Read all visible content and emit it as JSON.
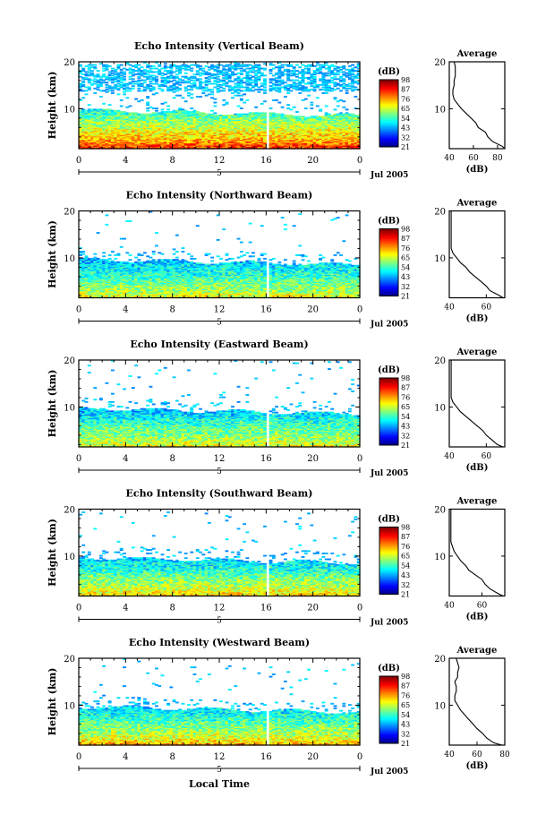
{
  "figure": {
    "xaxis_label": "Local Time",
    "date_label": "Jul 2005",
    "day_label": "5",
    "time_ticks": [
      "0",
      "4",
      "8",
      "12",
      "16",
      "20",
      "0"
    ],
    "colorbar_unit": "(dB)",
    "colorbar_ticks": [
      "21",
      "32",
      "43",
      "54",
      "65",
      "76",
      "87",
      "98"
    ],
    "side_title": "Average",
    "side_xlabel": "(dB)"
  },
  "chart_data": [
    {
      "type": "heatmap",
      "title": "Echo Intensity (Vertical Beam)",
      "ylabel": "Height (km)",
      "x_hours": [
        0,
        24
      ],
      "ylim_km": [
        1.5,
        20
      ],
      "y_ticks": [
        "10",
        "20"
      ],
      "clim_db": [
        21,
        98
      ],
      "data_gap_hours": [
        15.9,
        16.1
      ],
      "colorbar_ticks": [
        "21",
        "32",
        "43",
        "54",
        "65",
        "76",
        "87",
        "98"
      ],
      "profile": {
        "title": "Average",
        "xlim": [
          40,
          86
        ],
        "x_ticks": [
          "40",
          "60",
          "80"
        ],
        "y_ticks": [
          "10",
          "20"
        ],
        "height_km": [
          1.5,
          2,
          3,
          4,
          5,
          6,
          7,
          8,
          9,
          10,
          11,
          12,
          13,
          14,
          15,
          16,
          17,
          18,
          19,
          20
        ],
        "db": [
          86,
          84,
          76,
          72,
          70,
          64,
          62,
          58,
          54,
          50,
          47,
          44,
          43,
          43,
          44,
          44,
          45,
          45,
          45,
          44
        ]
      }
    },
    {
      "type": "heatmap",
      "title": "Echo Intensity (Northward Beam)",
      "ylabel": "Height (km)",
      "x_hours": [
        0,
        24
      ],
      "ylim_km": [
        1.5,
        20
      ],
      "y_ticks": [
        "10",
        "20"
      ],
      "clim_db": [
        21,
        98
      ],
      "data_gap_hours": [
        15.9,
        16.1
      ],
      "colorbar_ticks": [
        "21",
        "32",
        "43",
        "54",
        "65",
        "76",
        "87",
        "98"
      ],
      "profile": {
        "title": "Average",
        "xlim": [
          40,
          70
        ],
        "x_ticks": [
          "40",
          "60"
        ],
        "y_ticks": [
          "10",
          "20"
        ],
        "height_km": [
          1.5,
          2,
          3,
          4,
          5,
          6,
          7,
          8,
          9,
          10,
          11,
          12,
          13,
          14,
          15,
          16,
          17,
          18,
          19,
          20
        ],
        "db": [
          69,
          67,
          62,
          60,
          57,
          54,
          51,
          49,
          46,
          44,
          42,
          41,
          41,
          41,
          41,
          41,
          41,
          41,
          41,
          41
        ]
      }
    },
    {
      "type": "heatmap",
      "title": "Echo Intensity (Eastward Beam)",
      "ylabel": "Height (km)",
      "x_hours": [
        0,
        24
      ],
      "ylim_km": [
        1.5,
        20
      ],
      "y_ticks": [
        "10",
        "20"
      ],
      "clim_db": [
        21,
        98
      ],
      "data_gap_hours": [
        15.9,
        16.1
      ],
      "colorbar_ticks": [
        "21",
        "32",
        "43",
        "54",
        "65",
        "76",
        "87",
        "98"
      ],
      "profile": {
        "title": "Average",
        "xlim": [
          40,
          70
        ],
        "x_ticks": [
          "40",
          "60"
        ],
        "y_ticks": [
          "10",
          "20"
        ],
        "height_km": [
          1.5,
          2,
          3,
          4,
          5,
          6,
          7,
          8,
          9,
          10,
          11,
          12,
          13,
          14,
          15,
          16,
          17,
          18,
          19,
          20
        ],
        "db": [
          69,
          66,
          63,
          60,
          58,
          55,
          52,
          49,
          46,
          44,
          42,
          41,
          41,
          41,
          41,
          41,
          41,
          41,
          41,
          41
        ]
      }
    },
    {
      "type": "heatmap",
      "title": "Echo Intensity (Southward Beam)",
      "ylabel": "Height (km)",
      "x_hours": [
        0,
        24
      ],
      "ylim_km": [
        1.5,
        20
      ],
      "y_ticks": [
        "10",
        "20"
      ],
      "clim_db": [
        21,
        98
      ],
      "data_gap_hours": [
        15.9,
        16.1
      ],
      "colorbar_ticks": [
        "21",
        "32",
        "43",
        "54",
        "65",
        "76",
        "87",
        "98"
      ],
      "profile": {
        "title": "Average",
        "xlim": [
          40,
          74
        ],
        "x_ticks": [
          "40",
          "60"
        ],
        "y_ticks": [
          "10",
          "20"
        ],
        "height_km": [
          1.5,
          2,
          3,
          4,
          5,
          6,
          7,
          8,
          9,
          10,
          11,
          12,
          13,
          14,
          15,
          16,
          17,
          18,
          19,
          20
        ],
        "db": [
          73,
          70,
          65,
          62,
          60,
          56,
          52,
          50,
          47,
          45,
          43,
          42,
          41,
          41,
          41,
          41,
          41,
          41,
          41,
          41
        ]
      }
    },
    {
      "type": "heatmap",
      "title": "Echo Intensity (Westward Beam)",
      "ylabel": "Height (km)",
      "x_hours": [
        0,
        24
      ],
      "ylim_km": [
        1.5,
        20
      ],
      "y_ticks": [
        "10",
        "20"
      ],
      "clim_db": [
        21,
        98
      ],
      "data_gap_hours": [
        15.9,
        16.1
      ],
      "colorbar_ticks": [
        "21",
        "32",
        "43",
        "54",
        "65",
        "76",
        "87",
        "98"
      ],
      "profile": {
        "title": "Average",
        "xlim": [
          40,
          80
        ],
        "x_ticks": [
          "40",
          "60",
          "80"
        ],
        "y_ticks": [
          "10",
          "20"
        ],
        "height_km": [
          1.5,
          2,
          3,
          4,
          5,
          6,
          7,
          8,
          9,
          10,
          11,
          12,
          13,
          14,
          15,
          16,
          17,
          18,
          19,
          20
        ],
        "db": [
          78,
          72,
          67,
          64,
          60,
          57,
          54,
          51,
          48,
          46,
          44,
          44,
          45,
          45,
          44,
          46,
          46,
          47,
          46,
          45
        ]
      }
    }
  ]
}
